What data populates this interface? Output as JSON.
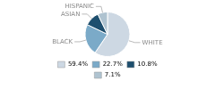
{
  "chart_data": {
    "type": "pie",
    "categories": [
      "WHITE",
      "BLACK",
      "ASIAN",
      "HISPANIC"
    ],
    "values": [
      59.4,
      22.7,
      10.8,
      7.1
    ],
    "value_labels": [
      "59.4%",
      "22.7%",
      "10.8%",
      "7.1%"
    ],
    "colors": [
      "#cdd8e3",
      "#7baac8",
      "#1e4f6e",
      "#afc3d0"
    ],
    "legend": "bottom"
  }
}
